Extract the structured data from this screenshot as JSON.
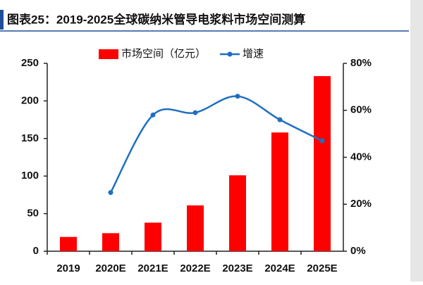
{
  "chart_data": {
    "type": "bar",
    "title": "图表25：2019-2025全球碳纳米管导电浆料市场空间测算",
    "categories": [
      "2019",
      "2020E",
      "2021E",
      "2022E",
      "2023E",
      "2024E",
      "2025E"
    ],
    "series": [
      {
        "name": "市场空间（亿元）",
        "type": "bar",
        "color": "#ff0000",
        "values": [
          19,
          24,
          38,
          61,
          101,
          158,
          233
        ]
      },
      {
        "name": "增速",
        "type": "line",
        "axis": "y2",
        "color": "#1f6fc0",
        "values": [
          null,
          25,
          58,
          59,
          66,
          56,
          47
        ]
      }
    ],
    "ylim": [
      0,
      250
    ],
    "yticks": [
      0,
      50,
      100,
      150,
      200,
      250
    ],
    "y2lim": [
      0,
      80
    ],
    "y2ticks": [
      {
        "value": 0,
        "label": "0%"
      },
      {
        "value": 20,
        "label": "20%"
      },
      {
        "value": 40,
        "label": "40%"
      },
      {
        "value": 60,
        "label": "60%"
      },
      {
        "value": 80,
        "label": "80%"
      }
    ],
    "legend": "top"
  }
}
